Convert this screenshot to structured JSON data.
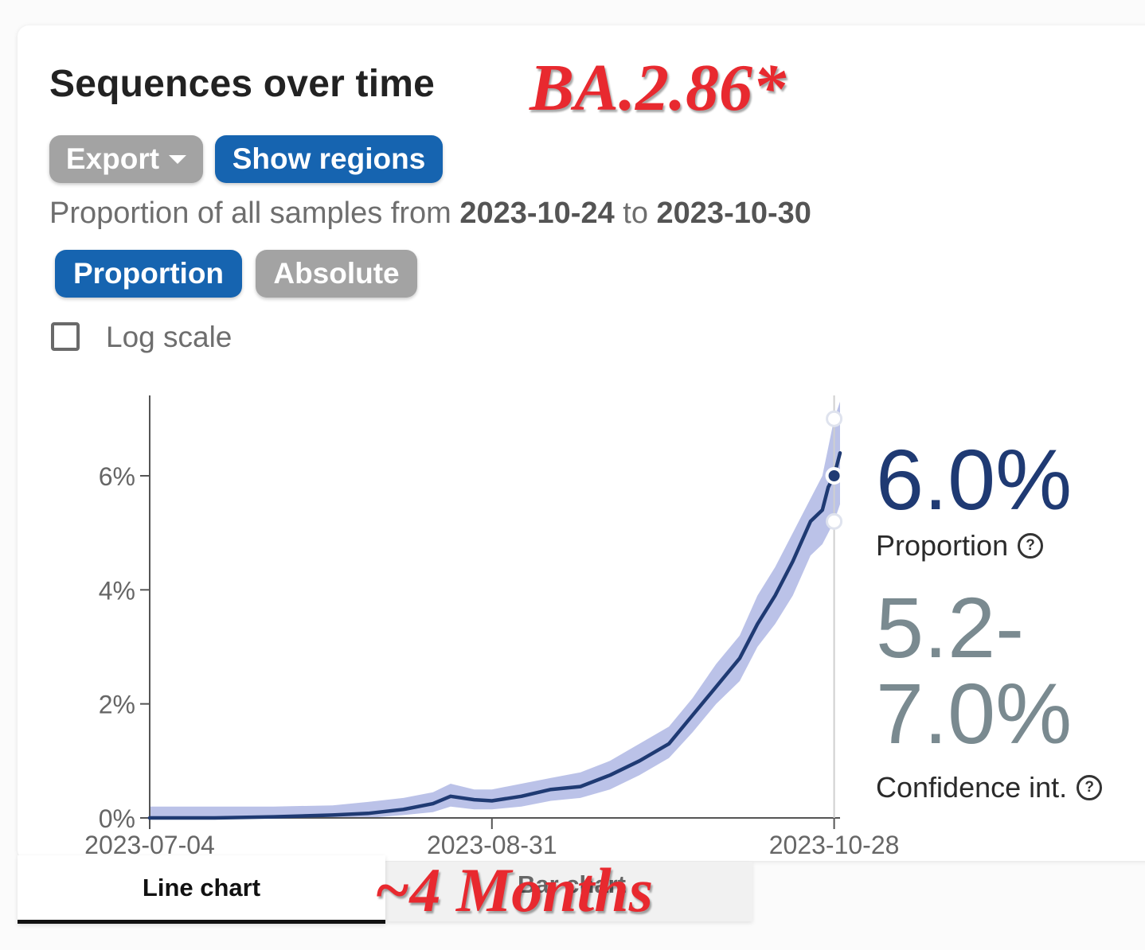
{
  "header": {
    "title": "Sequences over time",
    "annotation_top": "BA.2.86*"
  },
  "controls": {
    "export_label": "Export",
    "show_regions_label": "Show regions",
    "proportion_label": "Proportion",
    "absolute_label": "Absolute",
    "log_scale_label": "Log scale",
    "log_scale_checked": false
  },
  "description": {
    "prefix": "Proportion of all samples from ",
    "date_from": "2023-10-24",
    "middle": " to ",
    "date_to": "2023-10-30"
  },
  "stats": {
    "proportion_value": "6.0%",
    "proportion_label": "Proportion",
    "ci_line1": "5.2-",
    "ci_line2": "7.0%",
    "ci_label": "Confidence int."
  },
  "tabs": {
    "line_chart": "Line chart",
    "bar_chart": "Bar chart"
  },
  "annotation_bottom": "~4 Months",
  "colors": {
    "line": "#1f3a73",
    "band": "#b4bbe6",
    "accent_blue": "#1664b0",
    "button_grey": "#a3a3a3",
    "overlay_red": "#e8292f"
  },
  "chart_data": {
    "type": "line",
    "xlabel": "",
    "ylabel": "",
    "x_ticks": [
      "2023-07-04",
      "2023-08-31",
      "2023-10-28"
    ],
    "y_ticks": [
      "0%",
      "2%",
      "4%",
      "6%"
    ],
    "ylim": [
      0,
      7.3
    ],
    "xlim": [
      "2023-07-04",
      "2023-10-29"
    ],
    "grid": false,
    "series": [
      {
        "values": [
          {
            "x": "2023-07-04",
            "y": 0.0,
            "lo": 0.0,
            "hi": 0.2
          },
          {
            "x": "2023-07-15",
            "y": 0.0,
            "lo": 0.0,
            "hi": 0.2
          },
          {
            "x": "2023-07-25",
            "y": 0.02,
            "lo": 0.0,
            "hi": 0.2
          },
          {
            "x": "2023-08-04",
            "y": 0.05,
            "lo": 0.0,
            "hi": 0.22
          },
          {
            "x": "2023-08-10",
            "y": 0.08,
            "lo": 0.0,
            "hi": 0.28
          },
          {
            "x": "2023-08-16",
            "y": 0.15,
            "lo": 0.05,
            "hi": 0.35
          },
          {
            "x": "2023-08-21",
            "y": 0.25,
            "lo": 0.1,
            "hi": 0.45
          },
          {
            "x": "2023-08-24",
            "y": 0.38,
            "lo": 0.2,
            "hi": 0.6
          },
          {
            "x": "2023-08-28",
            "y": 0.32,
            "lo": 0.15,
            "hi": 0.5
          },
          {
            "x": "2023-08-31",
            "y": 0.3,
            "lo": 0.15,
            "hi": 0.5
          },
          {
            "x": "2023-09-05",
            "y": 0.38,
            "lo": 0.2,
            "hi": 0.6
          },
          {
            "x": "2023-09-10",
            "y": 0.5,
            "lo": 0.3,
            "hi": 0.7
          },
          {
            "x": "2023-09-15",
            "y": 0.55,
            "lo": 0.35,
            "hi": 0.8
          },
          {
            "x": "2023-09-20",
            "y": 0.75,
            "lo": 0.5,
            "hi": 1.0
          },
          {
            "x": "2023-09-25",
            "y": 1.0,
            "lo": 0.75,
            "hi": 1.3
          },
          {
            "x": "2023-09-30",
            "y": 1.3,
            "lo": 1.05,
            "hi": 1.6
          },
          {
            "x": "2023-10-04",
            "y": 1.8,
            "lo": 1.5,
            "hi": 2.1
          },
          {
            "x": "2023-10-08",
            "y": 2.3,
            "lo": 2.0,
            "hi": 2.7
          },
          {
            "x": "2023-10-12",
            "y": 2.8,
            "lo": 2.4,
            "hi": 3.2
          },
          {
            "x": "2023-10-15",
            "y": 3.4,
            "lo": 3.0,
            "hi": 3.9
          },
          {
            "x": "2023-10-18",
            "y": 3.9,
            "lo": 3.4,
            "hi": 4.4
          },
          {
            "x": "2023-10-21",
            "y": 4.5,
            "lo": 3.9,
            "hi": 5.0
          },
          {
            "x": "2023-10-24",
            "y": 5.2,
            "lo": 4.6,
            "hi": 5.6
          },
          {
            "x": "2023-10-26",
            "y": 5.4,
            "lo": 4.8,
            "hi": 6.0
          },
          {
            "x": "2023-10-27",
            "y": 5.8,
            "lo": 5.0,
            "hi": 6.5
          },
          {
            "x": "2023-10-28",
            "y": 6.0,
            "lo": 5.2,
            "hi": 7.0
          },
          {
            "x": "2023-10-29",
            "y": 6.4,
            "lo": 5.5,
            "hi": 7.3
          }
        ]
      }
    ],
    "highlight": {
      "x": "2023-10-28",
      "y": 6.0,
      "lo": 5.2,
      "hi": 7.0
    }
  }
}
